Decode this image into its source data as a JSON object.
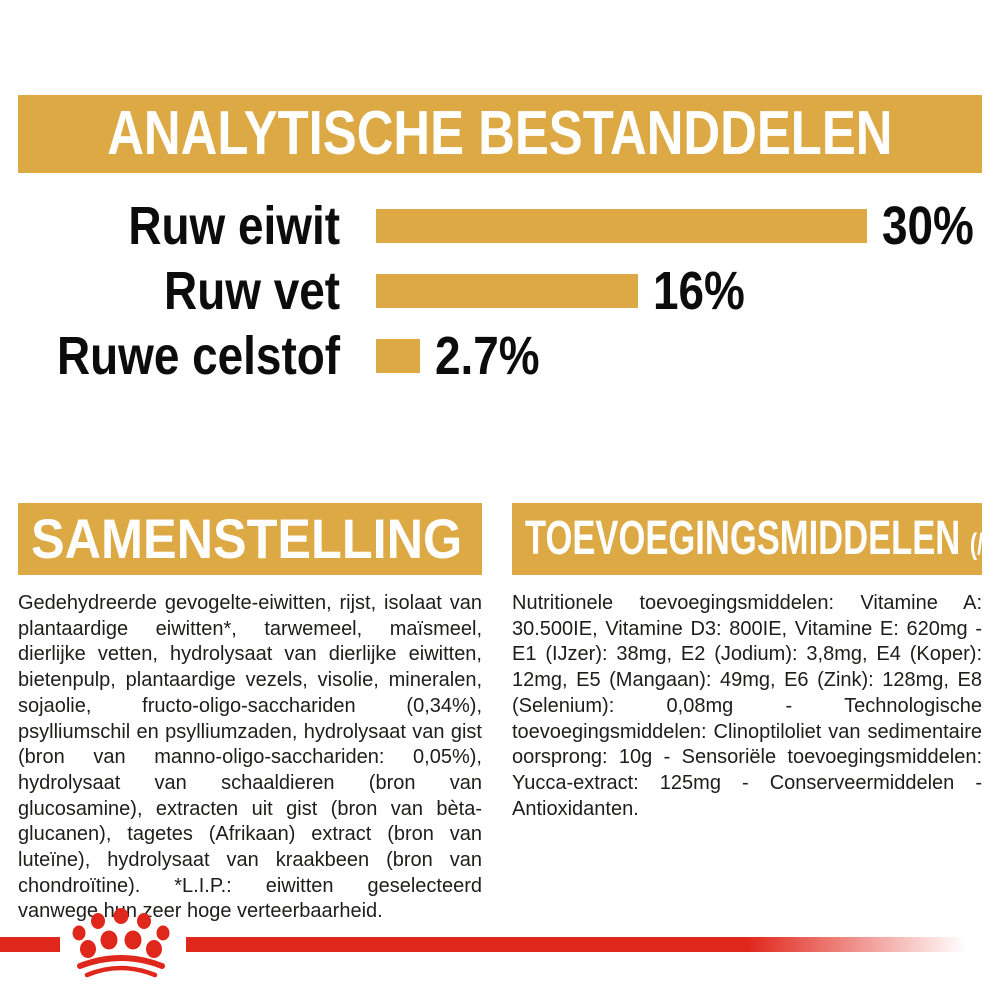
{
  "header": {
    "title": "ANALYTISCHE BESTANDDELEN"
  },
  "chart_data": {
    "type": "bar",
    "orientation": "horizontal",
    "title": "ANALYTISCHE BESTANDDELEN",
    "categories": [
      "Ruw eiwit",
      "Ruw vet",
      "Ruwe celstof"
    ],
    "values": [
      30,
      16,
      2.7
    ],
    "value_labels": [
      "30%",
      "16%",
      "2.7%"
    ],
    "unit": "%",
    "xlim": [
      0,
      30
    ],
    "bar_color": "#DCA945",
    "grid": false,
    "legend": false
  },
  "composition": {
    "title": "SAMENSTELLING",
    "body": "Gedehydreerde gevogelte-eiwitten, rijst, isolaat van plantaardige eiwitten*, tarwemeel, maïsmeel, dierlijke vetten, hydrolysaat van dierlijke eiwitten, bietenpulp, plantaardige vezels, visolie, mineralen, sojaolie, fructo-oligo-sacchariden (0,34%), psylliumschil en psylliumzaden, hydrolysaat van gist (bron van manno-oligo-sacchariden: 0,05%), hydrolysaat van schaaldieren (bron van glucosamine), extracten uit gist (bron van bèta-glucanen), tagetes (Afrikaan) extract (bron van luteïne), hydrolysaat van kraakbeen (bron van chondroïtine). *L.I.P.: eiwitten geselecteerd vanwege hun zeer hoge verteerbaarheid."
  },
  "additives": {
    "title": "TOEVOEGINGSMIDDELEN",
    "unit_label": "(/kg)",
    "body": "Nutritionele toevoegingsmiddelen: Vitamine A: 30.500IE, Vitamine D3: 800IE, Vitamine E: 620mg - E1 (IJzer): 38mg, E2 (Jodium): 3,8mg, E4 (Koper): 12mg, E5 (Mangaan): 49mg, E6 (Zink): 128mg, E8 (Selenium): 0,08mg - Technologische toevoegingsmiddelen: Clinoptiloliet van sedimentaire oorsprong: 10g - Sensoriële toevoegingsmiddelen: Yucca-extract: 125mg - Conserveermiddelen - Antioxidanten."
  },
  "footer": {
    "logo": "royal-canin-crown-icon"
  },
  "colors": {
    "gold": "#DCA945",
    "red": "#E0271C",
    "text": "#1D1D1B"
  }
}
